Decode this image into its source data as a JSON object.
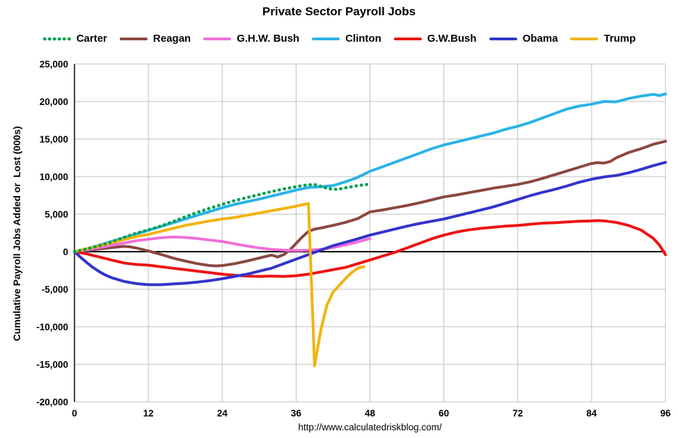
{
  "page": {
    "footer_url": "http://www.calculatedriskblog.com/"
  },
  "chart_data": {
    "type": "line",
    "title": "Private Sector Payroll Jobs",
    "ylabel": "Cumulative Payroll Jobs Added or  Lost (000s)",
    "xlabel": "",
    "xlim": [
      0,
      96
    ],
    "ylim": [
      -20000,
      25000
    ],
    "x_ticks": [
      0,
      12,
      24,
      36,
      48,
      60,
      72,
      84,
      96
    ],
    "y_ticks": [
      25000,
      20000,
      15000,
      10000,
      5000,
      0,
      -5000,
      -10000,
      -15000,
      -20000
    ],
    "grid": true,
    "legend_position": "top",
    "colors": {
      "grid": "#bfbfbf",
      "axis": "#000000"
    },
    "series": [
      {
        "id": "carter",
        "name": "Carter",
        "color": "#00a050",
        "style": "dotted",
        "points": [
          [
            0,
            0
          ],
          [
            2,
            350
          ],
          [
            4,
            800
          ],
          [
            6,
            1300
          ],
          [
            8,
            1900
          ],
          [
            10,
            2450
          ],
          [
            12,
            2900
          ],
          [
            14,
            3400
          ],
          [
            16,
            4000
          ],
          [
            18,
            4650
          ],
          [
            20,
            5250
          ],
          [
            22,
            5800
          ],
          [
            24,
            6300
          ],
          [
            26,
            6800
          ],
          [
            28,
            7200
          ],
          [
            30,
            7600
          ],
          [
            32,
            8000
          ],
          [
            34,
            8350
          ],
          [
            36,
            8650
          ],
          [
            37,
            8800
          ],
          [
            38,
            8900
          ],
          [
            39,
            8950
          ],
          [
            40,
            8700
          ],
          [
            41,
            8450
          ],
          [
            42,
            8300
          ],
          [
            43,
            8350
          ],
          [
            44,
            8500
          ],
          [
            45,
            8650
          ],
          [
            46,
            8800
          ],
          [
            47,
            8900
          ],
          [
            48,
            9000
          ]
        ]
      },
      {
        "id": "reagan",
        "name": "Reagan",
        "color": "#8b4741",
        "style": "solid",
        "points": [
          [
            0,
            0
          ],
          [
            2,
            150
          ],
          [
            4,
            350
          ],
          [
            6,
            550
          ],
          [
            8,
            700
          ],
          [
            9,
            650
          ],
          [
            10,
            500
          ],
          [
            12,
            100
          ],
          [
            14,
            -350
          ],
          [
            16,
            -850
          ],
          [
            18,
            -1250
          ],
          [
            20,
            -1600
          ],
          [
            22,
            -1850
          ],
          [
            23,
            -1900
          ],
          [
            24,
            -1850
          ],
          [
            26,
            -1600
          ],
          [
            28,
            -1250
          ],
          [
            30,
            -850
          ],
          [
            32,
            -450
          ],
          [
            33,
            -700
          ],
          [
            34,
            -400
          ],
          [
            35,
            250
          ],
          [
            36,
            1100
          ],
          [
            37,
            1950
          ],
          [
            38,
            2700
          ],
          [
            39,
            3000
          ],
          [
            40,
            3150
          ],
          [
            42,
            3500
          ],
          [
            44,
            3900
          ],
          [
            46,
            4400
          ],
          [
            48,
            5300
          ],
          [
            50,
            5550
          ],
          [
            52,
            5850
          ],
          [
            54,
            6150
          ],
          [
            56,
            6500
          ],
          [
            58,
            6900
          ],
          [
            60,
            7300
          ],
          [
            62,
            7550
          ],
          [
            64,
            7850
          ],
          [
            66,
            8150
          ],
          [
            68,
            8450
          ],
          [
            70,
            8700
          ],
          [
            72,
            8950
          ],
          [
            74,
            9300
          ],
          [
            76,
            9750
          ],
          [
            78,
            10250
          ],
          [
            80,
            10750
          ],
          [
            82,
            11250
          ],
          [
            84,
            11750
          ],
          [
            85,
            11850
          ],
          [
            86,
            11800
          ],
          [
            87,
            12000
          ],
          [
            88,
            12500
          ],
          [
            90,
            13200
          ],
          [
            92,
            13700
          ],
          [
            94,
            14300
          ],
          [
            96,
            14700
          ]
        ]
      },
      {
        "id": "ghw-bush",
        "name": "G.H.W. Bush",
        "color": "#f06fd8",
        "style": "solid",
        "points": [
          [
            0,
            0
          ],
          [
            2,
            250
          ],
          [
            4,
            550
          ],
          [
            6,
            850
          ],
          [
            8,
            1150
          ],
          [
            10,
            1450
          ],
          [
            12,
            1650
          ],
          [
            14,
            1850
          ],
          [
            16,
            1950
          ],
          [
            18,
            1900
          ],
          [
            20,
            1750
          ],
          [
            22,
            1550
          ],
          [
            24,
            1350
          ],
          [
            26,
            1050
          ],
          [
            28,
            750
          ],
          [
            30,
            500
          ],
          [
            32,
            300
          ],
          [
            34,
            200
          ],
          [
            36,
            150
          ],
          [
            38,
            200
          ],
          [
            40,
            300
          ],
          [
            42,
            550
          ],
          [
            44,
            900
          ],
          [
            46,
            1300
          ],
          [
            48,
            1750
          ]
        ]
      },
      {
        "id": "clinton",
        "name": "Clinton",
        "color": "#2bb3e6",
        "style": "solid",
        "points": [
          [
            0,
            0
          ],
          [
            2,
            400
          ],
          [
            4,
            850
          ],
          [
            6,
            1350
          ],
          [
            8,
            1850
          ],
          [
            10,
            2350
          ],
          [
            12,
            2850
          ],
          [
            14,
            3350
          ],
          [
            16,
            3850
          ],
          [
            18,
            4350
          ],
          [
            20,
            4850
          ],
          [
            22,
            5350
          ],
          [
            24,
            5850
          ],
          [
            26,
            6300
          ],
          [
            28,
            6650
          ],
          [
            30,
            7000
          ],
          [
            32,
            7400
          ],
          [
            34,
            7800
          ],
          [
            36,
            8200
          ],
          [
            38,
            8550
          ],
          [
            40,
            8650
          ],
          [
            42,
            8800
          ],
          [
            44,
            9300
          ],
          [
            46,
            9900
          ],
          [
            48,
            10700
          ],
          [
            50,
            11300
          ],
          [
            52,
            11900
          ],
          [
            54,
            12500
          ],
          [
            56,
            13100
          ],
          [
            58,
            13700
          ],
          [
            60,
            14200
          ],
          [
            62,
            14600
          ],
          [
            64,
            15000
          ],
          [
            66,
            15400
          ],
          [
            68,
            15800
          ],
          [
            70,
            16300
          ],
          [
            72,
            16700
          ],
          [
            74,
            17200
          ],
          [
            76,
            17800
          ],
          [
            78,
            18400
          ],
          [
            80,
            19000
          ],
          [
            82,
            19400
          ],
          [
            84,
            19650
          ],
          [
            86,
            20000
          ],
          [
            88,
            19950
          ],
          [
            90,
            20400
          ],
          [
            92,
            20700
          ],
          [
            94,
            20950
          ],
          [
            95,
            20800
          ],
          [
            96,
            21000
          ]
        ]
      },
      {
        "id": "gw-bush",
        "name": "G.W.Bush",
        "color": "#ee1111",
        "style": "solid",
        "points": [
          [
            0,
            0
          ],
          [
            2,
            -300
          ],
          [
            4,
            -700
          ],
          [
            6,
            -1100
          ],
          [
            8,
            -1500
          ],
          [
            10,
            -1700
          ],
          [
            12,
            -1800
          ],
          [
            14,
            -2000
          ],
          [
            16,
            -2200
          ],
          [
            18,
            -2400
          ],
          [
            20,
            -2600
          ],
          [
            22,
            -2800
          ],
          [
            24,
            -3000
          ],
          [
            26,
            -3150
          ],
          [
            28,
            -3250
          ],
          [
            30,
            -3300
          ],
          [
            32,
            -3250
          ],
          [
            34,
            -3300
          ],
          [
            36,
            -3200
          ],
          [
            38,
            -3000
          ],
          [
            40,
            -2700
          ],
          [
            42,
            -2400
          ],
          [
            44,
            -2100
          ],
          [
            46,
            -1600
          ],
          [
            48,
            -1100
          ],
          [
            50,
            -600
          ],
          [
            52,
            -100
          ],
          [
            54,
            500
          ],
          [
            56,
            1100
          ],
          [
            58,
            1700
          ],
          [
            60,
            2200
          ],
          [
            62,
            2600
          ],
          [
            64,
            2900
          ],
          [
            66,
            3100
          ],
          [
            68,
            3250
          ],
          [
            70,
            3400
          ],
          [
            72,
            3500
          ],
          [
            74,
            3650
          ],
          [
            76,
            3800
          ],
          [
            78,
            3850
          ],
          [
            80,
            3950
          ],
          [
            82,
            4050
          ],
          [
            84,
            4100
          ],
          [
            85,
            4150
          ],
          [
            86,
            4100
          ],
          [
            88,
            3900
          ],
          [
            90,
            3500
          ],
          [
            92,
            2900
          ],
          [
            94,
            1800
          ],
          [
            95,
            900
          ],
          [
            96,
            -400
          ]
        ]
      },
      {
        "id": "obama",
        "name": "Obama",
        "color": "#3333cc",
        "style": "solid",
        "points": [
          [
            0,
            0
          ],
          [
            1,
            -750
          ],
          [
            2,
            -1450
          ],
          [
            3,
            -2100
          ],
          [
            4,
            -2650
          ],
          [
            5,
            -3100
          ],
          [
            6,
            -3450
          ],
          [
            8,
            -3950
          ],
          [
            10,
            -4250
          ],
          [
            12,
            -4400
          ],
          [
            14,
            -4400
          ],
          [
            16,
            -4300
          ],
          [
            18,
            -4200
          ],
          [
            20,
            -4050
          ],
          [
            22,
            -3850
          ],
          [
            24,
            -3600
          ],
          [
            26,
            -3300
          ],
          [
            28,
            -3000
          ],
          [
            30,
            -2600
          ],
          [
            32,
            -2200
          ],
          [
            34,
            -1600
          ],
          [
            36,
            -1000
          ],
          [
            38,
            -400
          ],
          [
            40,
            200
          ],
          [
            42,
            800
          ],
          [
            44,
            1250
          ],
          [
            46,
            1700
          ],
          [
            48,
            2200
          ],
          [
            50,
            2600
          ],
          [
            52,
            3000
          ],
          [
            54,
            3400
          ],
          [
            56,
            3750
          ],
          [
            58,
            4050
          ],
          [
            60,
            4350
          ],
          [
            62,
            4750
          ],
          [
            64,
            5150
          ],
          [
            66,
            5550
          ],
          [
            68,
            5950
          ],
          [
            70,
            6450
          ],
          [
            72,
            6950
          ],
          [
            74,
            7450
          ],
          [
            76,
            7900
          ],
          [
            78,
            8300
          ],
          [
            80,
            8750
          ],
          [
            82,
            9250
          ],
          [
            84,
            9650
          ],
          [
            86,
            9950
          ],
          [
            88,
            10150
          ],
          [
            90,
            10500
          ],
          [
            92,
            10950
          ],
          [
            94,
            11450
          ],
          [
            96,
            11900
          ]
        ]
      },
      {
        "id": "trump",
        "name": "Trump",
        "color": "#f0b410",
        "style": "solid",
        "points": [
          [
            0,
            0
          ],
          [
            2,
            400
          ],
          [
            4,
            800
          ],
          [
            6,
            1200
          ],
          [
            8,
            1600
          ],
          [
            10,
            2000
          ],
          [
            12,
            2300
          ],
          [
            14,
            2700
          ],
          [
            16,
            3100
          ],
          [
            18,
            3500
          ],
          [
            20,
            3800
          ],
          [
            22,
            4100
          ],
          [
            24,
            4350
          ],
          [
            26,
            4550
          ],
          [
            28,
            4850
          ],
          [
            30,
            5150
          ],
          [
            32,
            5450
          ],
          [
            34,
            5750
          ],
          [
            36,
            6050
          ],
          [
            37,
            6250
          ],
          [
            38,
            6400
          ],
          [
            39,
            -15200
          ],
          [
            40,
            -10500
          ],
          [
            41,
            -7100
          ],
          [
            42,
            -5400
          ],
          [
            43,
            -4500
          ],
          [
            44,
            -3600
          ],
          [
            45,
            -2800
          ],
          [
            46,
            -2200
          ],
          [
            47,
            -2000
          ]
        ]
      }
    ]
  }
}
